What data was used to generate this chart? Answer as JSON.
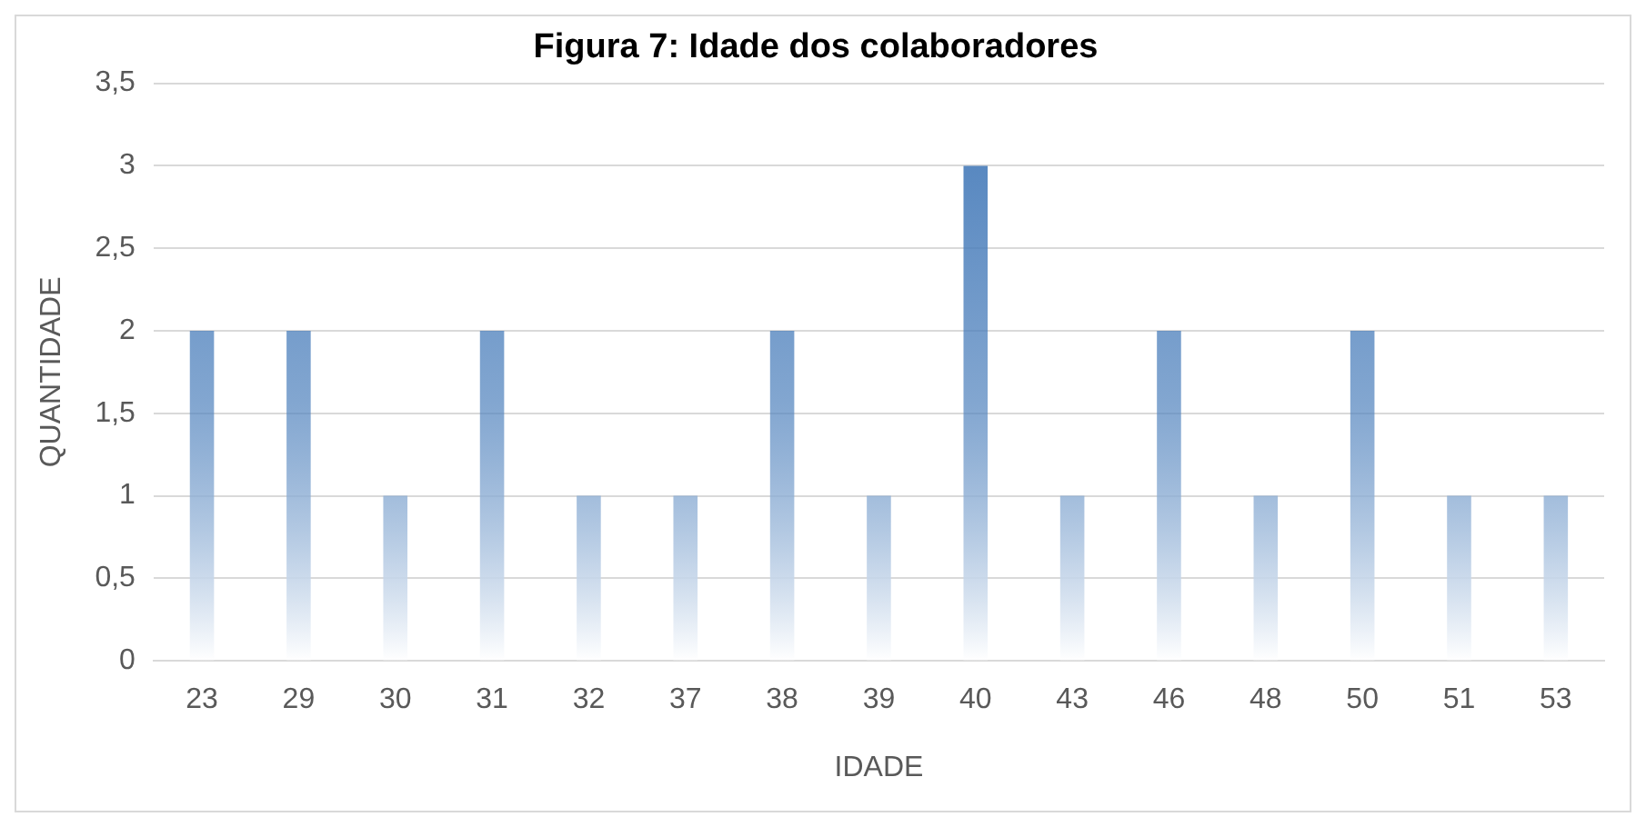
{
  "chart_data": {
    "type": "bar",
    "title": "Figura 7: Idade dos colaboradores",
    "xlabel": "IDADE",
    "ylabel": "QUANTIDADE",
    "categories": [
      "23",
      "29",
      "30",
      "31",
      "32",
      "37",
      "38",
      "39",
      "40",
      "43",
      "46",
      "48",
      "50",
      "51",
      "53"
    ],
    "series": [
      {
        "color": "#4a7ebb",
        "values": [
          2,
          2,
          1,
          2,
          1,
          1,
          2,
          1,
          3,
          1,
          2,
          1,
          2,
          1,
          1
        ]
      }
    ],
    "ylim": [
      0,
      3.5
    ],
    "yticks": [
      {
        "value": 0,
        "label": "0"
      },
      {
        "value": 0.5,
        "label": "0,5"
      },
      {
        "value": 1,
        "label": "1"
      },
      {
        "value": 1.5,
        "label": "1,5"
      },
      {
        "value": 2,
        "label": "2"
      },
      {
        "value": 2.5,
        "label": "2,5"
      },
      {
        "value": 3,
        "label": "3"
      },
      {
        "value": 3.5,
        "label": "3,5"
      }
    ],
    "grid": "y",
    "legend": false
  }
}
